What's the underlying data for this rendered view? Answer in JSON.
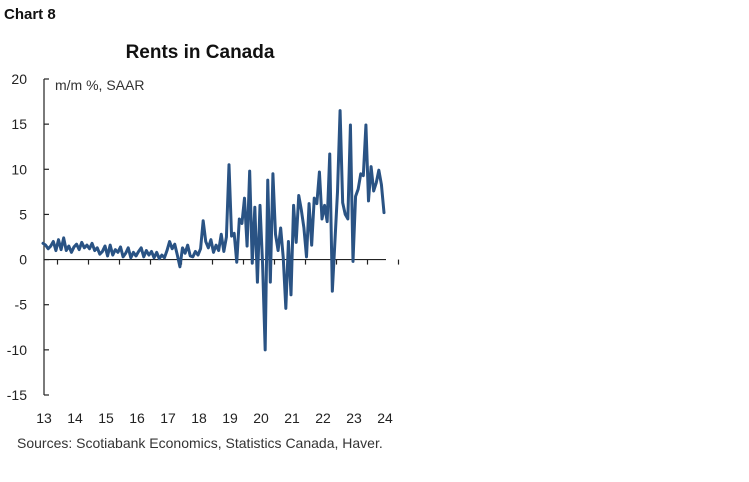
{
  "chart_number": "Chart 8",
  "sources": "Sources: Scotiabank Economics, Statistics Canada, Haver.",
  "line_color": "#2a5384",
  "chart_data": {
    "type": "line",
    "title": "Rents in Canada",
    "ylabel": "m/m %, SAAR",
    "xlabel": "",
    "ylim": [
      -15,
      20
    ],
    "yticks": [
      20,
      15,
      10,
      5,
      0,
      -5,
      -10,
      -15
    ],
    "yticks_labels": [
      "20",
      "15",
      "10",
      "5",
      "0",
      "-5",
      "-10",
      "-15"
    ],
    "xticks": [
      "13",
      "14",
      "15",
      "16",
      "17",
      "18",
      "19",
      "20",
      "21",
      "22",
      "23",
      "24"
    ],
    "grid": false,
    "legend": "none",
    "series": [
      {
        "x_start": "2013-01",
        "frequency": "monthly",
        "values": [
          1.8,
          1.6,
          1.2,
          1.5,
          2.0,
          1.0,
          2.2,
          1.1,
          2.4,
          1.0,
          1.5,
          0.8,
          1.4,
          1.7,
          1.1,
          1.9,
          1.3,
          1.6,
          1.2,
          1.8,
          1.0,
          1.3,
          0.6,
          0.9,
          1.5,
          0.4,
          1.6,
          0.5,
          1.1,
          0.8,
          1.4,
          0.3,
          0.7,
          1.3,
          0.2,
          0.8,
          0.4,
          0.9,
          1.3,
          0.3,
          1.0,
          0.5,
          0.9,
          0.2,
          0.8,
          0.1,
          0.5,
          0.2,
          1.0,
          2.0,
          1.2,
          1.7,
          0.5,
          -0.8,
          1.3,
          0.7,
          1.6,
          0.4,
          0.3,
          0.9,
          0.5,
          1.2,
          4.3,
          2.0,
          1.3,
          2.2,
          0.8,
          1.6,
          1.0,
          2.8,
          0.9,
          2.5,
          10.5,
          2.6,
          2.9,
          -0.3,
          4.5,
          4.0,
          6.8,
          1.5,
          9.8,
          -0.4,
          5.8,
          -2.5,
          6.0,
          -0.5,
          -10.0,
          8.8,
          -2.5,
          9.5,
          2.8,
          1.0,
          3.5,
          0.2,
          -5.4,
          2.0,
          -3.9,
          6.0,
          1.9,
          7.1,
          5.5,
          3.5,
          0.3,
          6.2,
          1.6,
          6.8,
          6.2,
          9.7,
          4.5,
          6.0,
          4.2,
          11.7,
          -3.5,
          2.0,
          7.5,
          16.5,
          6.3,
          5.0,
          4.5,
          14.9,
          -0.2,
          7.0,
          7.8,
          9.5,
          9.3,
          14.9,
          6.5,
          10.3,
          7.6,
          8.5,
          9.9,
          8.3,
          5.2
        ]
      }
    ]
  }
}
